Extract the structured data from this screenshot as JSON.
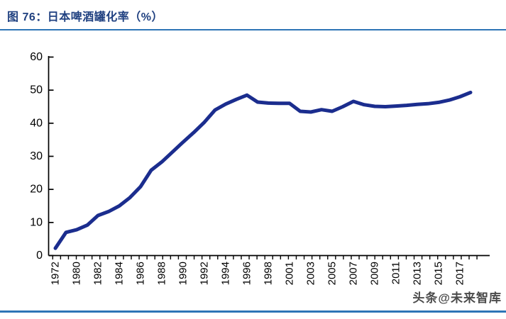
{
  "figure": {
    "title": "图 76：日本啤酒罐化率（%）",
    "watermark": "头条@未来智库",
    "accent_color": "#2e75b6",
    "title_color": "#1f4080"
  },
  "chart_data": {
    "type": "line",
    "title": "日本啤酒罐化率（%）",
    "x": [
      1972,
      1979,
      1980,
      1981,
      1982,
      1983,
      1984,
      1985,
      1986,
      1987,
      1988,
      1989,
      1990,
      1991,
      1992,
      1993,
      1994,
      1995,
      1996,
      1997,
      1998,
      2000,
      2001,
      2002,
      2003,
      2004,
      2005,
      2006,
      2007,
      2008,
      2009,
      2010,
      2011,
      2012,
      2013,
      2014,
      2015,
      2016,
      2017,
      2018
    ],
    "values": [
      2.2,
      7.0,
      7.8,
      9.2,
      12.1,
      13.3,
      15.0,
      17.5,
      20.8,
      25.8,
      28.3,
      31.3,
      34.3,
      37.2,
      40.3,
      44.0,
      45.8,
      47.2,
      48.5,
      46.4,
      46.1,
      46.0,
      46.0,
      43.6,
      43.4,
      44.1,
      43.6,
      45.0,
      46.6,
      45.6,
      45.1,
      45.0,
      45.2,
      45.4,
      45.7,
      45.9,
      46.3,
      47.0,
      48.0,
      49.3
    ],
    "x_tick_labels": [
      "1972",
      "1980",
      "1982",
      "1984",
      "1986",
      "1988",
      "1990",
      "1992",
      "1994",
      "1996",
      "1998",
      "2001",
      "2003",
      "2005",
      "2007",
      "2009",
      "2011",
      "2013",
      "2015",
      "2017"
    ],
    "y_ticks": [
      0,
      10,
      20,
      30,
      40,
      50,
      60
    ],
    "ylim": [
      0,
      60
    ],
    "grid": false,
    "legend": null,
    "line_color": "#1b2d8e",
    "axis_color": "#000000"
  }
}
